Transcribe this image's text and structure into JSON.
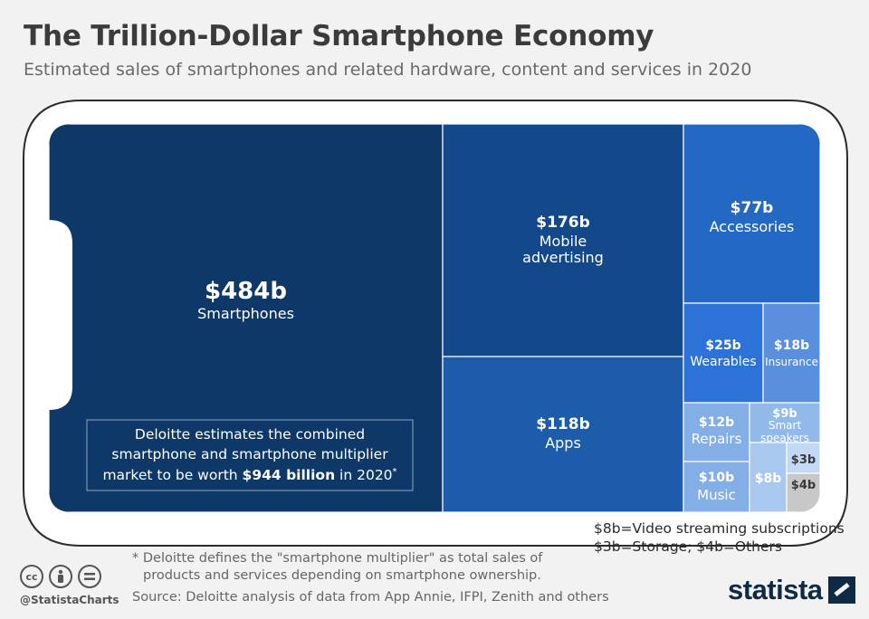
{
  "header": {
    "title": "The Trillion-Dollar Smartphone Economy",
    "subtitle": "Estimated sales of smartphones and related hardware, content and services in 2020"
  },
  "chart_data": {
    "type": "treemap",
    "unit": "billion USD",
    "items": [
      {
        "value_label": "$484b",
        "label": "Smartphones",
        "value": 484,
        "color": "#0e3867"
      },
      {
        "value_label": "$176b",
        "label": "Mobile advertising",
        "value": 176,
        "color": "#13498a"
      },
      {
        "value_label": "$118b",
        "label": "Apps",
        "value": 118,
        "color": "#1d5cab"
      },
      {
        "value_label": "$77b",
        "label": "Accessories",
        "value": 77,
        "color": "#2369c4"
      },
      {
        "value_label": "$25b",
        "label": "Wearables",
        "value": 25,
        "color": "#2d72d6"
      },
      {
        "value_label": "$18b",
        "label": "Insurance",
        "value": 18,
        "color": "#5a8fde"
      },
      {
        "value_label": "$12b",
        "label": "Repairs",
        "value": 12,
        "color": "#83aee6"
      },
      {
        "value_label": "$9b",
        "label": "Smart speakers",
        "value": 9,
        "color": "#91b9ea"
      },
      {
        "value_label": "$10b",
        "label": "Music",
        "value": 10,
        "color": "#83aee6"
      },
      {
        "value_label": "$8b",
        "label": "",
        "value": 8,
        "color": "#a9c8f0"
      },
      {
        "value_label": "$3b",
        "label": "",
        "value": 3,
        "color": "#c3d8f4"
      },
      {
        "value_label": "$4b",
        "label": "",
        "value": 4,
        "color": "#c8c8c8"
      }
    ]
  },
  "callout": {
    "line1": "Deloitte estimates the combined",
    "line2": "smartphone and smartphone multiplier",
    "line3_pre": "market to be worth ",
    "line3_bold": "$944 billion",
    "line3_post": " in 2020",
    "sup": "*"
  },
  "legend_notes": {
    "line1": "$8b=Video streaming subscriptions",
    "line2": "$3b=Storage; $4b=Others"
  },
  "footnote": {
    "line1": "* Deloitte defines the \"smartphone multiplier\" as total sales of",
    "line2": "products and services depending on smartphone ownership."
  },
  "source": "Source: Deloitte analysis of data from App Annie, IFPI, Zenith and others",
  "branding": {
    "handle": "@StatistaCharts",
    "logo": "statista",
    "cc_icons": [
      "cc-icon",
      "attribution-icon",
      "no-derivatives-icon"
    ]
  },
  "colors": {
    "phone_outline": "#2b2b2b",
    "text_dark": "#3b3b3b"
  }
}
